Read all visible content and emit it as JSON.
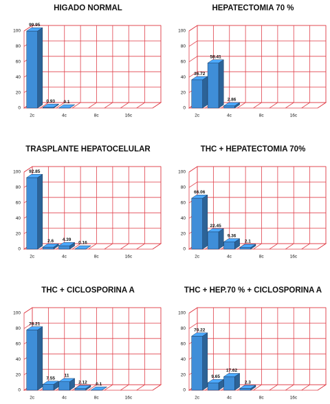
{
  "chart_data": [
    {
      "type": "bar",
      "title": "HIGADO NORMAL",
      "categories": [
        "2c",
        null,
        "4c",
        null,
        "8c",
        null,
        "16c",
        null
      ],
      "values": [
        99.95,
        0.93,
        0.1,
        null,
        null,
        null,
        null,
        null
      ],
      "color": "#3f8ed8",
      "ylim": [
        0,
        100
      ],
      "yticks": [
        0,
        20,
        40,
        60,
        80,
        100
      ],
      "grid": true
    },
    {
      "type": "bar",
      "title": "HEPATECTOMIA 70 %",
      "categories": [
        "2c",
        null,
        "4c",
        null,
        "8c",
        null,
        "16c",
        null
      ],
      "values": [
        36.72,
        58.41,
        2.86,
        null,
        null,
        null,
        null,
        null
      ],
      "color": "#3f8ed8",
      "ylim": [
        0,
        100
      ],
      "yticks": [
        0,
        20,
        40,
        60,
        80,
        100
      ],
      "grid": true
    },
    {
      "type": "bar",
      "title": "TRASPLANTE HEPATOCELULAR",
      "categories": [
        "2c",
        null,
        "4c",
        null,
        "8c",
        null,
        "16c",
        null
      ],
      "values": [
        92.85,
        2.6,
        4.39,
        0.16,
        null,
        null,
        null,
        null
      ],
      "color": "#3f8ed8",
      "ylim": [
        0,
        100
      ],
      "yticks": [
        0,
        20,
        40,
        60,
        80,
        100
      ],
      "grid": true
    },
    {
      "type": "bar",
      "title": "THC + HEPATECTOMIA 70%",
      "categories": [
        "2c",
        null,
        "4c",
        null,
        "8c",
        null,
        "16c",
        null
      ],
      "values": [
        66.06,
        22.45,
        9.36,
        2.1,
        null,
        null,
        null,
        null
      ],
      "color": "#3f8ed8",
      "ylim": [
        0,
        100
      ],
      "yticks": [
        0,
        20,
        40,
        60,
        80,
        100
      ],
      "grid": true
    },
    {
      "type": "bar",
      "title": "THC + CICLOSPORINA A",
      "categories": [
        "2c",
        null,
        "4c",
        null,
        "8c",
        null,
        "16c",
        null
      ],
      "values": [
        78.21,
        7.55,
        11,
        2.12,
        0.1,
        null,
        null,
        null
      ],
      "color": "#3f8ed8",
      "ylim": [
        0,
        100
      ],
      "yticks": [
        0,
        20,
        40,
        60,
        80,
        100
      ],
      "grid": true
    },
    {
      "type": "bar",
      "title": "THC + HEP.70 % + CICLOSPORINA A",
      "categories": [
        "2c",
        null,
        "4c",
        null,
        "8c",
        null,
        "16c",
        null
      ],
      "values": [
        70.22,
        9.65,
        17.62,
        2.3,
        null,
        null,
        null,
        null
      ],
      "color": "#3f8ed8",
      "ylim": [
        0,
        100
      ],
      "yticks": [
        0,
        20,
        40,
        60,
        80,
        100
      ],
      "grid": true
    }
  ]
}
